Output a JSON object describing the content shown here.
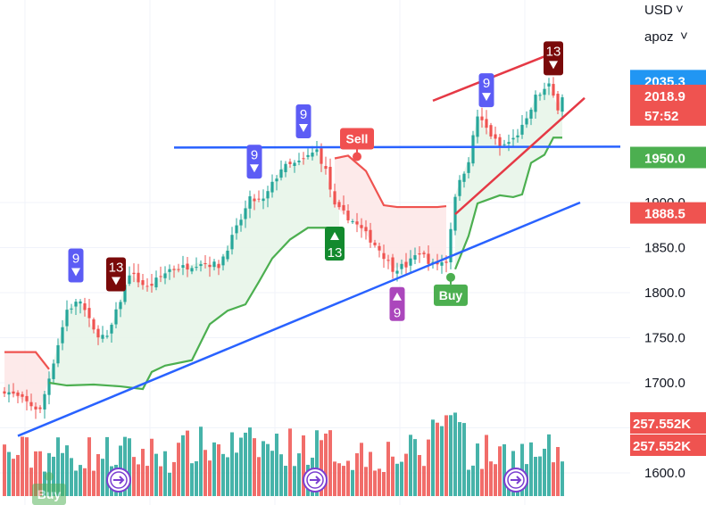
{
  "header": {
    "currency": "USD",
    "currency_chevron": "˅",
    "indicator": "apoz",
    "indicator_chevron": "˅"
  },
  "colors": {
    "up": "#26a69a",
    "down": "#ef5350",
    "trend_up": "#4caf50",
    "trend_down": "#ef5350",
    "up_fill": "#e8f5e9",
    "down_fill": "#fde8e8",
    "trendline_blue": "#2962ff",
    "wedge_red": "#e53945",
    "td9_blue": "#5c5cf5",
    "td13_dark": "#7a0a0a",
    "td13_green": "#138a2e",
    "td9_purple": "#ab47bc",
    "sell": "#f05050",
    "buy": "#4caf50",
    "replay_icon": "#7b3fd1"
  },
  "price_labels": [
    {
      "text": "2035.3",
      "value": 2035.3,
      "color": "#2196f3"
    },
    {
      "text": "2018.9",
      "value": 2018.9,
      "color": "#ef5350",
      "sub": "57:52"
    },
    {
      "text": "1950.0",
      "value": 1950.0,
      "color": "#4caf50"
    },
    {
      "text": "1888.5",
      "value": 1888.5,
      "color": "#ef5350"
    }
  ],
  "volume_labels": [
    {
      "text": "257.552K",
      "color": "#ef5350"
    },
    {
      "text": "257.552K",
      "color": "#ef5350"
    }
  ],
  "markers": {
    "sell": "Sell",
    "buy": "Buy",
    "buy_faded": "Buy"
  },
  "td_labels": [
    {
      "text": "9",
      "type": "sell-setup",
      "bar": 16,
      "color": "#5c5cf5"
    },
    {
      "text": "13",
      "type": "sell-countdown",
      "bar": 25,
      "color": "#7a0a0a"
    },
    {
      "text": "9",
      "type": "sell-setup",
      "bar": 56,
      "color": "#5c5cf5"
    },
    {
      "text": "9",
      "type": "sell-setup",
      "bar": 67,
      "color": "#5c5cf5"
    },
    {
      "text": "13",
      "type": "buy-countdown",
      "bar": 74,
      "color": "#138a2e"
    },
    {
      "text": "9",
      "type": "buy-setup",
      "bar": 88,
      "color": "#ab47bc"
    },
    {
      "text": "9",
      "type": "sell-setup",
      "bar": 108,
      "color": "#5c5cf5"
    },
    {
      "text": "13",
      "type": "sell-countdown",
      "bar": 123,
      "color": "#7a0a0a"
    }
  ],
  "chart_data": {
    "type": "candlestick",
    "y_axis": {
      "ticks": [
        1900.0,
        1850.0,
        1800.0,
        1750.0,
        1700.0,
        1650.0,
        1600.0
      ],
      "tick_labels": [
        "1900.0",
        "1850.0",
        "1800.0",
        "1750.0",
        "1700.0",
        "",
        "1600.0"
      ]
    },
    "ylim": [
      1580,
      2095
    ],
    "grid": true,
    "series": [
      {
        "name": "price",
        "kind": "ohlc",
        "bars": 126,
        "first_close": 1692,
        "last_close": 2019
      }
    ],
    "close_anchors": [
      [
        0,
        1692
      ],
      [
        4,
        1681
      ],
      [
        8,
        1669
      ],
      [
        11,
        1724
      ],
      [
        14,
        1781
      ],
      [
        17,
        1791
      ],
      [
        20,
        1757
      ],
      [
        23,
        1749
      ],
      [
        26,
        1792
      ],
      [
        28,
        1822
      ],
      [
        32,
        1805
      ],
      [
        37,
        1826
      ],
      [
        40,
        1828
      ],
      [
        44,
        1834
      ],
      [
        48,
        1830
      ],
      [
        52,
        1871
      ],
      [
        55,
        1903
      ],
      [
        58,
        1902
      ],
      [
        62,
        1938
      ],
      [
        66,
        1944
      ],
      [
        70,
        1958
      ],
      [
        72,
        1935
      ],
      [
        74,
        1895
      ],
      [
        77,
        1884
      ],
      [
        80,
        1870
      ],
      [
        84,
        1848
      ],
      [
        87,
        1827
      ],
      [
        90,
        1830
      ],
      [
        93,
        1845
      ],
      [
        96,
        1831
      ],
      [
        99,
        1835
      ],
      [
        101,
        1909
      ],
      [
        104,
        1948
      ],
      [
        106,
        1996
      ],
      [
        108,
        1982
      ],
      [
        111,
        1961
      ],
      [
        114,
        1970
      ],
      [
        117,
        1990
      ],
      [
        119,
        2017
      ],
      [
        122,
        2029
      ],
      [
        124,
        2006
      ],
      [
        125,
        2019
      ]
    ],
    "supertrend": {
      "down": [
        [
          0,
          1734
        ],
        [
          7,
          1734
        ],
        [
          10,
          1715
        ]
      ],
      "up": [
        [
          10,
          1700
        ],
        [
          14,
          1697
        ],
        [
          20,
          1698
        ],
        [
          26,
          1696
        ],
        [
          31,
          1693
        ],
        [
          33,
          1712
        ],
        [
          36,
          1719
        ],
        [
          42,
          1725
        ],
        [
          46,
          1765
        ],
        [
          50,
          1780
        ],
        [
          54,
          1787
        ],
        [
          57,
          1812
        ],
        [
          60,
          1838
        ],
        [
          64,
          1859
        ],
        [
          68,
          1872
        ],
        [
          72,
          1872
        ],
        [
          74,
          1872
        ],
        [
          75,
          1872
        ]
      ],
      "down2": [
        [
          74,
          1949
        ],
        [
          77,
          1952
        ],
        [
          81,
          1935
        ],
        [
          85,
          1897
        ],
        [
          88,
          1895
        ],
        [
          97,
          1895
        ],
        [
          99,
          1896
        ]
      ],
      "up2": [
        [
          101,
          1826
        ],
        [
          104,
          1863
        ],
        [
          106,
          1899
        ],
        [
          111,
          1908
        ],
        [
          114,
          1906
        ],
        [
          116,
          1909
        ],
        [
          118,
          1944
        ],
        [
          121,
          1953
        ],
        [
          123,
          1972
        ],
        [
          125,
          1972
        ]
      ]
    },
    "trendlines": [
      {
        "name": "",
        "color": "#2962ff",
        "points": [
          [
            3,
            1641
          ],
          [
            129,
            1900
          ]
        ]
      },
      {
        "name": "",
        "color": "#2962ff",
        "points": [
          [
            38,
            1961
          ],
          [
            138,
            1962
          ]
        ]
      },
      {
        "name": "",
        "color": "#e53945",
        "points": [
          [
            96,
            2013
          ],
          [
            123,
            2066
          ]
        ]
      },
      {
        "name": "",
        "color": "#e53945",
        "points": [
          [
            101,
            1887
          ],
          [
            130,
            2016
          ]
        ]
      }
    ],
    "volume": {
      "max_label": "257.552K",
      "bars": 126
    }
  }
}
